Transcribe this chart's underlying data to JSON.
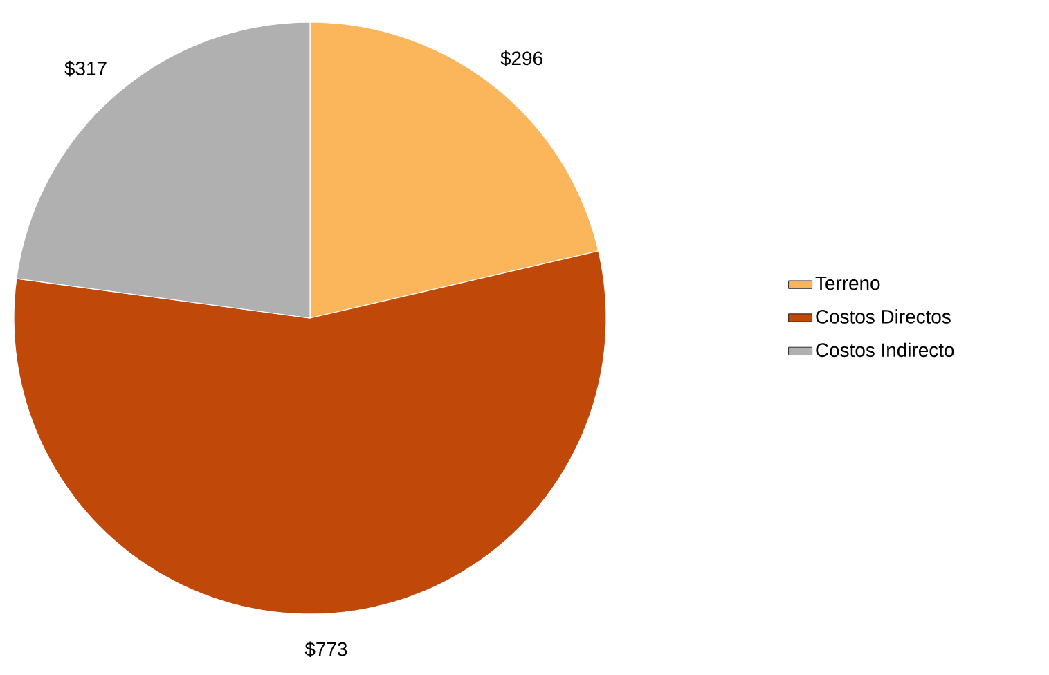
{
  "chart_data": {
    "type": "pie",
    "categories": [
      "Terreno",
      "Costos Directos",
      "Costos Indirecto"
    ],
    "values": [
      296,
      773,
      317
    ],
    "value_labels": [
      "$296",
      "$773",
      "$317"
    ],
    "colors": [
      "#fbb55a",
      "#c0490a",
      "#b0b0b0"
    ],
    "legend": "right"
  }
}
